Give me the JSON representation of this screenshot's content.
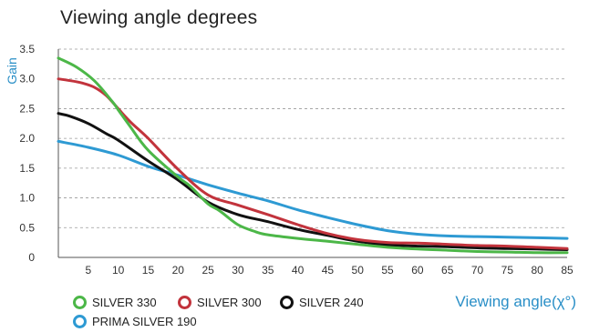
{
  "chart_data": {
    "type": "line",
    "title": "Viewing angle degrees",
    "xlabel": "Viewing  angle(χ°)",
    "ylabel": "Gain",
    "xlim": [
      0,
      85
    ],
    "ylim": [
      0,
      3.5
    ],
    "x_ticks": [
      5,
      10,
      15,
      20,
      25,
      30,
      35,
      40,
      45,
      50,
      55,
      60,
      65,
      70,
      75,
      80,
      85
    ],
    "y_ticks": [
      "0",
      "0.5",
      "1.0",
      "1.5",
      "2.0",
      "2.5",
      "3.0",
      "3.5"
    ],
    "grid": "horizontal-dashed",
    "legend_position": "bottom-left",
    "series": [
      {
        "name": "SILVER 330",
        "color": "#4cb748",
        "x": [
          0,
          3,
          6,
          9,
          10,
          12,
          15,
          20,
          22,
          25,
          27,
          30,
          33,
          35,
          40,
          45,
          50,
          55,
          60,
          65,
          70,
          75,
          80,
          85
        ],
        "y": [
          3.35,
          3.2,
          2.97,
          2.62,
          2.48,
          2.2,
          1.8,
          1.35,
          1.2,
          0.9,
          0.78,
          0.55,
          0.43,
          0.38,
          0.32,
          0.27,
          0.22,
          0.17,
          0.14,
          0.12,
          0.1,
          0.09,
          0.08,
          0.08
        ]
      },
      {
        "name": "SILVER 300",
        "color": "#c2333c",
        "x": [
          0,
          2,
          4,
          6,
          8,
          10,
          12,
          15,
          20,
          25,
          30,
          35,
          40,
          45,
          50,
          55,
          60,
          65,
          70,
          75,
          80,
          85
        ],
        "y": [
          3.0,
          2.97,
          2.93,
          2.86,
          2.72,
          2.5,
          2.28,
          2.0,
          1.48,
          1.05,
          0.88,
          0.72,
          0.55,
          0.4,
          0.3,
          0.25,
          0.24,
          0.22,
          0.2,
          0.19,
          0.17,
          0.15
        ]
      },
      {
        "name": "SILVER 240",
        "color": "#111111",
        "x": [
          0,
          2,
          5,
          8,
          10,
          15,
          20,
          25,
          30,
          35,
          40,
          45,
          50,
          55,
          60,
          65,
          70,
          75,
          80,
          85
        ],
        "y": [
          2.42,
          2.37,
          2.25,
          2.08,
          1.97,
          1.62,
          1.3,
          0.93,
          0.72,
          0.6,
          0.47,
          0.37,
          0.27,
          0.21,
          0.19,
          0.18,
          0.16,
          0.15,
          0.14,
          0.13
        ]
      },
      {
        "name": "PRIMA SILVER 190",
        "color": "#2e9ad3",
        "x": [
          0,
          5,
          10,
          15,
          20,
          25,
          30,
          35,
          40,
          45,
          50,
          55,
          60,
          65,
          70,
          75,
          80,
          85
        ],
        "y": [
          1.95,
          1.85,
          1.72,
          1.53,
          1.38,
          1.22,
          1.08,
          0.95,
          0.8,
          0.67,
          0.55,
          0.45,
          0.39,
          0.36,
          0.35,
          0.34,
          0.33,
          0.32
        ]
      }
    ]
  }
}
